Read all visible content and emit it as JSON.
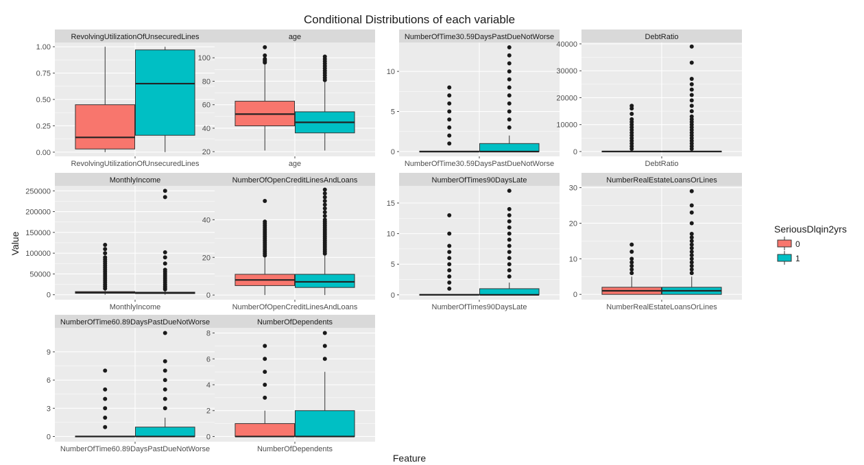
{
  "figure": {
    "title": "Conditional Distributions of each variable",
    "xlabel": "Feature",
    "ylabel": "Value"
  },
  "legend": {
    "title": "SeriousDlqin2yrs",
    "placement": "right",
    "items": [
      {
        "label": "0",
        "color": "#F8766D"
      },
      {
        "label": "1",
        "color": "#00BFC4"
      }
    ]
  },
  "colors": {
    "group0": "#F8766D",
    "group1": "#00BFC4",
    "panel_bg": "#EBEBEB",
    "strip_bg": "#D9D9D9",
    "grid": "#FFFFFF"
  },
  "chart_data": {
    "type": "boxplot",
    "layout": "facet_wrap 4 columns, free scales",
    "groups": [
      "0",
      "1"
    ],
    "panels": [
      {
        "strip": "RevolvingUtilizationOfUnsecuredLines",
        "xtick": "RevolvingUtilizationOfUnsecuredLines",
        "ylim": [
          -0.04,
          1.04
        ],
        "yticks": [
          0,
          0.25,
          0.5,
          0.75,
          1
        ],
        "yticklabels": [
          "0.00",
          "0.25",
          "0.50",
          "0.75",
          "1.00"
        ],
        "boxes": [
          {
            "group": "0",
            "min": 0,
            "q1": 0.03,
            "median": 0.14,
            "q3": 0.45,
            "max": 1.0,
            "outliers": []
          },
          {
            "group": "1",
            "min": 0,
            "q1": 0.16,
            "median": 0.65,
            "q3": 0.97,
            "max": 1.0,
            "outliers": []
          }
        ]
      },
      {
        "strip": "age",
        "xtick": "age",
        "ylim": [
          16,
          113
        ],
        "yticks": [
          20,
          40,
          60,
          80,
          100
        ],
        "yticklabels": [
          "20",
          "40",
          "60",
          "80",
          "100"
        ],
        "boxes": [
          {
            "group": "0",
            "min": 21,
            "q1": 42,
            "median": 52,
            "q3": 63,
            "max": 95,
            "outliers": [
              96,
              97,
              98,
              99,
              102,
              109
            ]
          },
          {
            "group": "1",
            "min": 21,
            "q1": 36,
            "median": 45,
            "q3": 54,
            "max": 80,
            "outliers": [
              81,
              83,
              85,
              87,
              89,
              91,
              93,
              95,
              97,
              99,
              101
            ]
          }
        ]
      },
      {
        "strip": "NumberOfTime30.59DaysPastDueNotWorse",
        "xtick": "NumberOfTime30.59DaysPastDueNotWorse",
        "ylim": [
          -0.6,
          13.6
        ],
        "yticks": [
          0,
          5,
          10
        ],
        "yticklabels": [
          "0",
          "5",
          "10"
        ],
        "boxes": [
          {
            "group": "0",
            "min": 0,
            "q1": 0,
            "median": 0,
            "q3": 0,
            "max": 0,
            "outliers": [
              1,
              2,
              3,
              4,
              5,
              6,
              7,
              8
            ]
          },
          {
            "group": "1",
            "min": 0,
            "q1": 0,
            "median": 0,
            "q3": 1,
            "max": 2,
            "outliers": [
              3,
              4,
              5,
              6,
              7,
              8,
              9,
              10,
              11,
              12,
              13
            ]
          }
        ]
      },
      {
        "strip": "DebtRatio",
        "xtick": "DebtRatio",
        "ylim": [
          -1800,
          40500
        ],
        "yticks": [
          0,
          10000,
          20000,
          30000,
          40000
        ],
        "yticklabels": [
          "0",
          "10000",
          "20000",
          "30000",
          "40000"
        ],
        "boxes": [
          {
            "group": "0",
            "min": 0,
            "q1": 0,
            "median": 0,
            "q3": 0,
            "max": 0,
            "outliers": [
              1000,
              2000,
              3000,
              4000,
              5000,
              6000,
              7000,
              8000,
              9000,
              10000,
              11000,
              12000,
              14000,
              16000,
              17000
            ]
          },
          {
            "group": "1",
            "min": 0,
            "q1": 0,
            "median": 0,
            "q3": 0,
            "max": 0,
            "outliers": [
              1000,
              2000,
              3000,
              4000,
              5000,
              6000,
              7000,
              8000,
              9000,
              10000,
              11000,
              12000,
              13000,
              15000,
              17000,
              19000,
              21000,
              23000,
              25000,
              27000,
              33000,
              39000
            ]
          }
        ]
      },
      {
        "strip": "MonthlyIncome",
        "xtick": "MonthlyIncome",
        "ylim": [
          -12000,
          262000
        ],
        "yticks": [
          0,
          50000,
          100000,
          150000,
          200000,
          250000
        ],
        "yticklabels": [
          "0",
          "50000",
          "100000",
          "150000",
          "200000",
          "250000"
        ],
        "boxes": [
          {
            "group": "0",
            "min": 0,
            "q1": 3500,
            "median": 5000,
            "q3": 7500,
            "max": 13000,
            "outliers": [
              15000,
              20000,
              25000,
              30000,
              35000,
              40000,
              45000,
              50000,
              55000,
              60000,
              65000,
              70000,
              75000,
              80000,
              85000,
              90000,
              100000,
              110000,
              120000
            ]
          },
          {
            "group": "1",
            "min": 0,
            "q1": 2800,
            "median": 4200,
            "q3": 6200,
            "max": 11000,
            "outliers": [
              13000,
              16000,
              20000,
              25000,
              30000,
              35000,
              40000,
              45000,
              50000,
              55000,
              60000,
              75000,
              90000,
              102000,
              235000,
              250000
            ]
          }
        ]
      },
      {
        "strip": "NumberOfOpenCreditLinesAndLoans",
        "xtick": "NumberOfOpenCreditLinesAndLoans",
        "ylim": [
          -2.5,
          58
        ],
        "yticks": [
          0,
          20,
          40
        ],
        "yticklabels": [
          "0",
          "20",
          "40"
        ],
        "boxes": [
          {
            "group": "0",
            "min": 0,
            "q1": 5,
            "median": 8,
            "q3": 11,
            "max": 20,
            "outliers": [
              21,
              22,
              23,
              24,
              25,
              26,
              27,
              28,
              29,
              30,
              31,
              32,
              33,
              34,
              35,
              36,
              37,
              38,
              39,
              50
            ]
          },
          {
            "group": "1",
            "min": 0,
            "q1": 4,
            "median": 7,
            "q3": 11,
            "max": 21,
            "outliers": [
              22,
              23,
              24,
              25,
              26,
              27,
              28,
              29,
              30,
              31,
              32,
              33,
              34,
              35,
              36,
              37,
              38,
              39,
              40,
              42,
              44,
              46,
              48,
              50,
              52,
              54,
              56
            ]
          }
        ]
      },
      {
        "strip": "NumberOfTimes90DaysLate",
        "xtick": "NumberOfTimes90DaysLate",
        "ylim": [
          -0.8,
          17.8
        ],
        "yticks": [
          0,
          5,
          10,
          15
        ],
        "yticklabels": [
          "0",
          "5",
          "10",
          "15"
        ],
        "boxes": [
          {
            "group": "0",
            "min": 0,
            "q1": 0,
            "median": 0,
            "q3": 0,
            "max": 0,
            "outliers": [
              1,
              2,
              3,
              4,
              5,
              6,
              7,
              8,
              10,
              13
            ]
          },
          {
            "group": "1",
            "min": 0,
            "q1": 0,
            "median": 0,
            "q3": 1,
            "max": 2,
            "outliers": [
              3,
              4,
              5,
              6,
              7,
              8,
              9,
              10,
              11,
              12,
              13,
              14,
              17
            ]
          }
        ]
      },
      {
        "strip": "NumberRealEstateLoansOrLines",
        "xtick": "NumberRealEstateLoansOrLines",
        "ylim": [
          -1.5,
          30.5
        ],
        "yticks": [
          0,
          10,
          20,
          30
        ],
        "yticklabels": [
          "0",
          "10",
          "20",
          "30"
        ],
        "boxes": [
          {
            "group": "0",
            "min": 0,
            "q1": 0,
            "median": 1,
            "q3": 2,
            "max": 5,
            "outliers": [
              6,
              7,
              8,
              9,
              10,
              12,
              14
            ]
          },
          {
            "group": "1",
            "min": 0,
            "q1": 0,
            "median": 1,
            "q3": 2,
            "max": 5,
            "outliers": [
              6,
              7,
              8,
              9,
              10,
              11,
              12,
              13,
              14,
              15,
              16,
              17,
              20,
              23,
              25,
              29
            ]
          }
        ]
      },
      {
        "strip": "NumberOfTime60.89DaysPastDueNotWorse",
        "xtick": "NumberOfTime60.89DaysPastDueNotWorse",
        "ylim": [
          -0.55,
          11.55
        ],
        "yticks": [
          0,
          3,
          6,
          9
        ],
        "yticklabels": [
          "0",
          "3",
          "6",
          "9"
        ],
        "boxes": [
          {
            "group": "0",
            "min": 0,
            "q1": 0,
            "median": 0,
            "q3": 0,
            "max": 0,
            "outliers": [
              1,
              2,
              3,
              4,
              5,
              7
            ]
          },
          {
            "group": "1",
            "min": 0,
            "q1": 0,
            "median": 0,
            "q3": 1,
            "max": 2,
            "outliers": [
              3,
              4,
              5,
              6,
              7,
              8,
              11
            ]
          }
        ]
      },
      {
        "strip": "NumberOfDependents",
        "xtick": "NumberOfDependents",
        "ylim": [
          -0.4,
          8.4
        ],
        "yticks": [
          0,
          2,
          4,
          6,
          8
        ],
        "yticklabels": [
          "0",
          "2",
          "4",
          "6",
          "8"
        ],
        "boxes": [
          {
            "group": "0",
            "min": 0,
            "q1": 0,
            "median": 0,
            "q3": 1,
            "max": 2,
            "outliers": [
              3,
              4,
              5,
              6,
              7
            ]
          },
          {
            "group": "1",
            "min": 0,
            "q1": 0,
            "median": 0,
            "q3": 2,
            "max": 5,
            "outliers": [
              6,
              7,
              8
            ]
          }
        ]
      }
    ]
  }
}
